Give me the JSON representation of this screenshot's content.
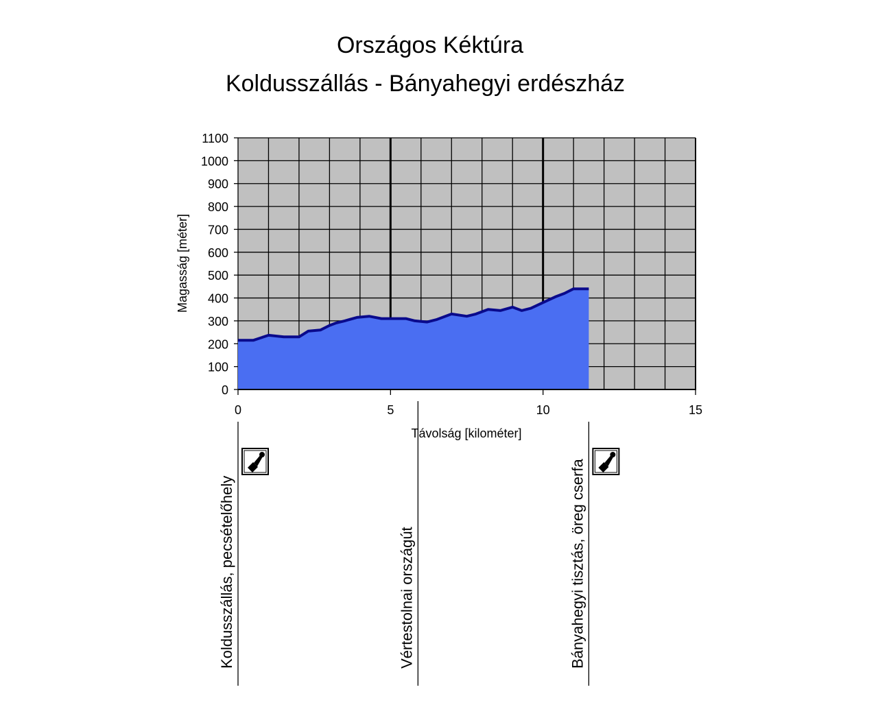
{
  "chart_data": {
    "type": "area",
    "title": "Országos Kéktúra",
    "subtitle": "Koldusszállás - Bányahegyi erdészház",
    "xlabel": "Távolság [kilométer]",
    "ylabel": "Magasság [méter]",
    "xlim": [
      0,
      15
    ],
    "ylim": [
      0,
      1100
    ],
    "x_ticks": [
      "0",
      "5",
      "10",
      "15"
    ],
    "y_ticks": [
      "0",
      "100",
      "200",
      "300",
      "400",
      "500",
      "600",
      "700",
      "800",
      "900",
      "1000",
      "1100"
    ],
    "grid": true,
    "colors": {
      "plot_bg": "#c0c0c0",
      "fill": "#4a6ef2",
      "line": "#0a0a8c",
      "grid": "#000000"
    },
    "series": [
      {
        "x": [
          0,
          0.5,
          1.0,
          1.5,
          2.0,
          2.3,
          2.7,
          3.0,
          3.2,
          3.5,
          3.9,
          4.3,
          4.7,
          5.0,
          5.5,
          5.8,
          6.2,
          6.5,
          7.0,
          7.5,
          7.8,
          8.2,
          8.6,
          9.0,
          9.3,
          9.6,
          10.0,
          10.4,
          10.7,
          11.0,
          11.5
        ],
        "y": [
          215,
          215,
          237,
          230,
          230,
          255,
          260,
          280,
          290,
          300,
          315,
          320,
          310,
          310,
          310,
          300,
          295,
          305,
          330,
          320,
          330,
          350,
          345,
          360,
          345,
          355,
          380,
          405,
          420,
          440,
          440
        ]
      }
    ],
    "waypoints": [
      {
        "x": 0,
        "label": "Koldusszállás, pecsételőhely",
        "stamp": true,
        "icon": "stamp-icon"
      },
      {
        "x": 5.9,
        "label": "Vértestolnai országút",
        "stamp": false
      },
      {
        "x": 11.5,
        "label": "Bányahegyi tisztás, öreg cserfa",
        "stamp": true,
        "icon": "stamp-icon"
      }
    ]
  }
}
